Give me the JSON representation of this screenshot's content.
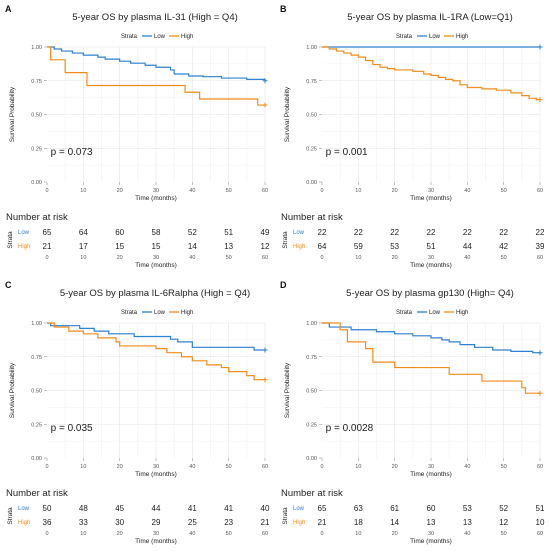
{
  "panels": [
    {
      "label": "A",
      "title": "5-year OS by plasma IL-31 (High = Q4)",
      "legend_title": "Strata",
      "groups": [
        "Low",
        "High"
      ],
      "p_value": "p = 0.073",
      "ylabel": "Survival Probability",
      "xlabel": "Time (months)",
      "risk_title": "Number at risk",
      "risk_ylabel": "Strata",
      "risk_low": [
        65,
        64,
        60,
        58,
        52,
        51,
        49
      ],
      "risk_high": [
        21,
        17,
        15,
        15,
        14,
        13,
        12
      ]
    },
    {
      "label": "B",
      "title": "5-year OS by plasma IL-1RA (Low=Q1)",
      "legend_title": "Strata",
      "groups": [
        "Low",
        "High"
      ],
      "p_value": "p = 0.001",
      "ylabel": "Survival Probability",
      "xlabel": "Time (months)",
      "risk_title": "Number at risk",
      "risk_ylabel": "Strata",
      "risk_low": [
        22,
        22,
        22,
        22,
        22,
        22,
        22
      ],
      "risk_high": [
        64,
        59,
        53,
        51,
        44,
        42,
        39
      ]
    },
    {
      "label": "C",
      "title": "5-year OS by plasma IL-6Ralpha (High = Q4)",
      "legend_title": "Strata",
      "groups": [
        "Low",
        "High"
      ],
      "p_value": "p = 0.035",
      "ylabel": "Survival Probability",
      "xlabel": "Time (months)",
      "risk_title": "Number at risk",
      "risk_ylabel": "Strata",
      "risk_low": [
        50,
        48,
        45,
        44,
        41,
        41,
        40
      ],
      "risk_high": [
        36,
        33,
        30,
        29,
        25,
        23,
        21
      ]
    },
    {
      "label": "D",
      "title": "5-year OS by plasma gp130 (High= Q4)",
      "legend_title": "Strata",
      "groups": [
        "Low",
        "High"
      ],
      "p_value": "p = 0.0028",
      "ylabel": "Survival Probability",
      "xlabel": "Time (months)",
      "risk_title": "Number at risk",
      "risk_ylabel": "Strata",
      "risk_low": [
        65,
        63,
        61,
        60,
        53,
        52,
        51
      ],
      "risk_high": [
        21,
        18,
        14,
        13,
        13,
        12,
        10
      ]
    }
  ],
  "colors": {
    "low": "#2e7fd1",
    "high": "#f28c1a"
  },
  "chart_data": [
    {
      "type": "line",
      "title": "5-year OS by plasma IL-31 (High = Q4)",
      "xlabel": "Time (months)",
      "ylabel": "Survival Probability",
      "xlim": [
        0,
        60
      ],
      "ylim": [
        0,
        1
      ],
      "x_ticks": [
        0,
        10,
        20,
        30,
        40,
        50,
        60
      ],
      "y_ticks": [
        "0.00",
        "0.25",
        "0.50",
        "0.75",
        "1.00"
      ],
      "series": [
        {
          "name": "Low",
          "step": [
            [
              0,
              1
            ],
            [
              2,
              0.985
            ],
            [
              4,
              0.97
            ],
            [
              7,
              0.955
            ],
            [
              10,
              0.94
            ],
            [
              14,
              0.925
            ],
            [
              16,
              0.91
            ],
            [
              20,
              0.895
            ],
            [
              23,
              0.88
            ],
            [
              27,
              0.865
            ],
            [
              30,
              0.85
            ],
            [
              34,
              0.83
            ],
            [
              35,
              0.8
            ],
            [
              39,
              0.785
            ],
            [
              43,
              0.78
            ],
            [
              48,
              0.77
            ],
            [
              55,
              0.76
            ],
            [
              60,
              0.75
            ]
          ]
        },
        {
          "name": "High",
          "step": [
            [
              0,
              1
            ],
            [
              1,
              0.905
            ],
            [
              5,
              0.81
            ],
            [
              11,
              0.715
            ],
            [
              38,
              0.665
            ],
            [
              42,
              0.615
            ],
            [
              58,
              0.57
            ],
            [
              60,
              0.57
            ]
          ]
        }
      ]
    },
    {
      "type": "line",
      "title": "5-year OS by plasma IL-1RA (Low=Q1)",
      "xlabel": "Time (months)",
      "ylabel": "Survival Probability",
      "xlim": [
        0,
        60
      ],
      "ylim": [
        0,
        1
      ],
      "x_ticks": [
        0,
        10,
        20,
        30,
        40,
        50,
        60
      ],
      "y_ticks": [
        "0.00",
        "0.25",
        "0.50",
        "0.75",
        "1.00"
      ],
      "series": [
        {
          "name": "Low",
          "step": [
            [
              0,
              1
            ],
            [
              60,
              1
            ]
          ]
        },
        {
          "name": "High",
          "step": [
            [
              0,
              1
            ],
            [
              2,
              0.985
            ],
            [
              4,
              0.97
            ],
            [
              6,
              0.955
            ],
            [
              8,
              0.94
            ],
            [
              10,
              0.925
            ],
            [
              12,
              0.9
            ],
            [
              14,
              0.87
            ],
            [
              16,
              0.85
            ],
            [
              18,
              0.84
            ],
            [
              20,
              0.83
            ],
            [
              25,
              0.82
            ],
            [
              28,
              0.8
            ],
            [
              30,
              0.79
            ],
            [
              32,
              0.775
            ],
            [
              34,
              0.76
            ],
            [
              36,
              0.75
            ],
            [
              38,
              0.72
            ],
            [
              40,
              0.7
            ],
            [
              44,
              0.69
            ],
            [
              48,
              0.68
            ],
            [
              52,
              0.66
            ],
            [
              55,
              0.64
            ],
            [
              57,
              0.62
            ],
            [
              59,
              0.61
            ],
            [
              60,
              0.61
            ]
          ]
        }
      ]
    },
    {
      "type": "line",
      "title": "5-year OS by plasma IL-6Ralpha (High = Q4)",
      "xlabel": "Time (months)",
      "ylabel": "Survival Probability",
      "xlim": [
        0,
        60
      ],
      "ylim": [
        0,
        1
      ],
      "x_ticks": [
        0,
        10,
        20,
        30,
        40,
        50,
        60
      ],
      "y_ticks": [
        "0.00",
        "0.25",
        "0.50",
        "0.75",
        "1.00"
      ],
      "series": [
        {
          "name": "Low",
          "step": [
            [
              0,
              1
            ],
            [
              1,
              0.98
            ],
            [
              9,
              0.96
            ],
            [
              13,
              0.94
            ],
            [
              17,
              0.92
            ],
            [
              24,
              0.9
            ],
            [
              34,
              0.88
            ],
            [
              36,
              0.86
            ],
            [
              40,
              0.82
            ],
            [
              57,
              0.8
            ],
            [
              60,
              0.8
            ]
          ]
        },
        {
          "name": "High",
          "step": [
            [
              0,
              1
            ],
            [
              2,
              0.97
            ],
            [
              6,
              0.94
            ],
            [
              10,
              0.92
            ],
            [
              14,
              0.89
            ],
            [
              19,
              0.86
            ],
            [
              20,
              0.83
            ],
            [
              30,
              0.81
            ],
            [
              33,
              0.78
            ],
            [
              37,
              0.75
            ],
            [
              40,
              0.72
            ],
            [
              44,
              0.69
            ],
            [
              48,
              0.67
            ],
            [
              50,
              0.64
            ],
            [
              55,
              0.61
            ],
            [
              57,
              0.58
            ],
            [
              60,
              0.58
            ]
          ]
        }
      ]
    },
    {
      "type": "line",
      "title": "5-year OS by plasma gp130 (High= Q4)",
      "xlabel": "Time (months)",
      "ylabel": "Survival Probability",
      "xlim": [
        0,
        60
      ],
      "ylim": [
        0,
        1
      ],
      "x_ticks": [
        0,
        10,
        20,
        30,
        40,
        50,
        60
      ],
      "y_ticks": [
        "0.00",
        "0.25",
        "0.50",
        "0.75",
        "1.00"
      ],
      "series": [
        {
          "name": "Low",
          "step": [
            [
              0,
              1
            ],
            [
              2,
              0.97
            ],
            [
              8,
              0.95
            ],
            [
              15,
              0.935
            ],
            [
              20,
              0.92
            ],
            [
              25,
              0.905
            ],
            [
              30,
              0.89
            ],
            [
              33,
              0.875
            ],
            [
              35,
              0.86
            ],
            [
              38,
              0.84
            ],
            [
              42,
              0.82
            ],
            [
              47,
              0.8
            ],
            [
              52,
              0.79
            ],
            [
              58,
              0.78
            ],
            [
              60,
              0.78
            ]
          ]
        },
        {
          "name": "High",
          "step": [
            [
              0,
              1
            ],
            [
              5,
              0.95
            ],
            [
              7,
              0.86
            ],
            [
              12,
              0.81
            ],
            [
              14,
              0.71
            ],
            [
              20,
              0.67
            ],
            [
              35,
              0.62
            ],
            [
              44,
              0.57
            ],
            [
              55,
              0.52
            ],
            [
              56,
              0.48
            ],
            [
              60,
              0.48
            ]
          ]
        }
      ]
    }
  ]
}
